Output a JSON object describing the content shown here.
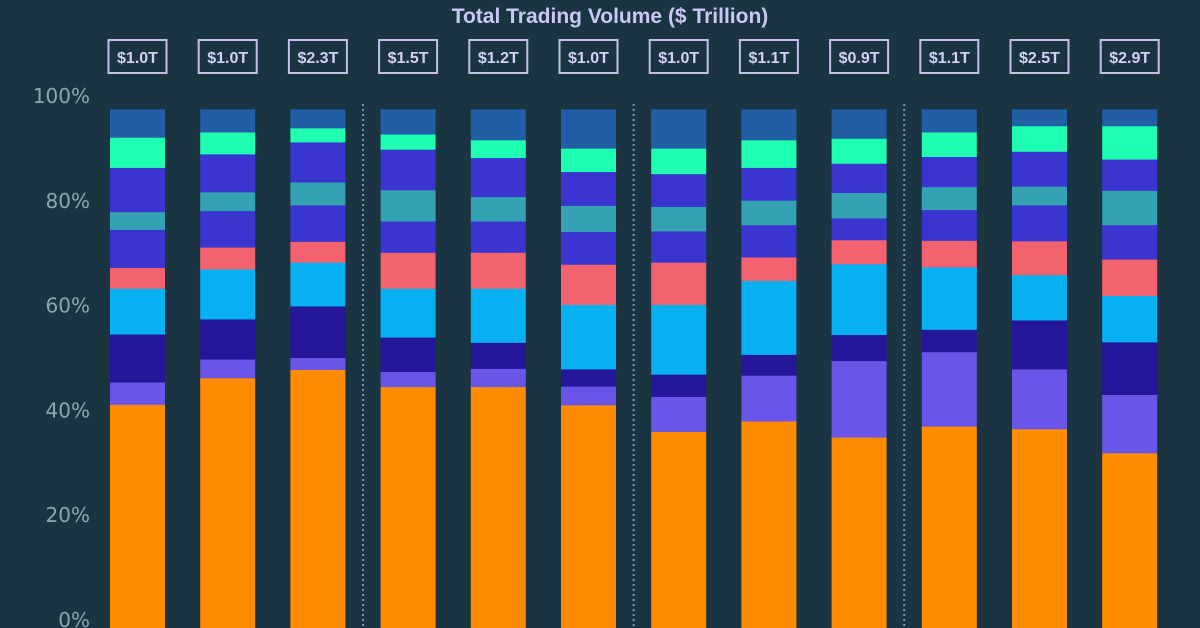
{
  "chart_data": {
    "type": "bar",
    "stacked": true,
    "normalized": true,
    "title": "Total Trading Volume ($ Trillion)",
    "xlabel": "",
    "ylabel": "",
    "ylim": [
      0,
      100
    ],
    "y_ticks": [
      "0%",
      "20%",
      "40%",
      "60%",
      "80%",
      "100%"
    ],
    "y_tick_values": [
      0,
      20,
      40,
      60,
      80,
      100
    ],
    "grid": false,
    "legend": "none",
    "group_dividers_after": [
      3,
      6,
      9
    ],
    "totals": [
      "$1.0T",
      "$1.0T",
      "$2.3T",
      "$1.5T",
      "$1.2T",
      "$1.0T",
      "$1.0T",
      "$1.1T",
      "$0.9T",
      "$1.1T",
      "$2.5T",
      "$2.9T"
    ],
    "series": [
      {
        "color": "#ff8c00",
        "values": [
          43.3,
          48.4,
          50.0,
          46.7,
          46.7,
          43.2,
          38.1,
          40.1,
          37.0,
          39.1,
          38.6,
          34.0
        ]
      },
      {
        "color": "#6955e8",
        "values": [
          4.3,
          3.6,
          2.3,
          2.9,
          3.5,
          3.6,
          6.7,
          8.8,
          14.7,
          14.3,
          11.5,
          11.2
        ]
      },
      {
        "color": "#24179a",
        "values": [
          9.2,
          7.7,
          9.9,
          6.6,
          5.0,
          3.3,
          4.3,
          4.0,
          5.0,
          4.3,
          9.4,
          10.1
        ]
      },
      {
        "color": "#07b1f1",
        "values": [
          8.8,
          9.6,
          8.4,
          9.4,
          10.4,
          12.4,
          13.4,
          14.2,
          13.6,
          12.0,
          8.7,
          8.9
        ]
      },
      {
        "color": "#f3636f",
        "values": [
          4.0,
          4.2,
          4.0,
          6.9,
          6.9,
          7.7,
          8.1,
          4.5,
          4.6,
          5.1,
          6.5,
          7.0
        ]
      },
      {
        "color": "#3a35d0",
        "values": [
          7.3,
          7.0,
          7.0,
          6.0,
          6.0,
          6.3,
          6.0,
          6.2,
          4.2,
          5.9,
          6.9,
          6.6
        ]
      },
      {
        "color": "#35a2b3",
        "values": [
          3.4,
          3.6,
          4.4,
          6.0,
          4.7,
          5.0,
          4.7,
          4.7,
          4.9,
          4.4,
          3.6,
          6.6
        ]
      },
      {
        "color": "#3a35d0",
        "values": [
          8.5,
          7.3,
          7.7,
          7.8,
          7.5,
          6.5,
          6.3,
          6.3,
          5.6,
          5.8,
          6.7,
          6.0
        ]
      },
      {
        "color": "#1effb1",
        "values": [
          5.8,
          4.2,
          2.7,
          2.9,
          3.4,
          4.5,
          4.9,
          5.3,
          4.8,
          4.7,
          4.9,
          6.4
        ]
      },
      {
        "color": "#215ea6",
        "values": [
          5.4,
          4.4,
          3.6,
          4.8,
          5.9,
          7.5,
          7.5,
          5.9,
          5.6,
          4.4,
          3.2,
          3.2
        ]
      }
    ]
  },
  "colors": {
    "background": "#1a3541",
    "title": "#c9c8f2",
    "axis_text": "#8ea7ad",
    "divider": "#7f98a0"
  }
}
